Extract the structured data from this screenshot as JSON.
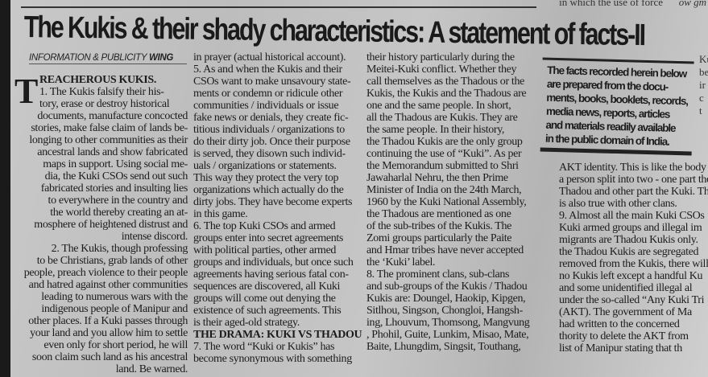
{
  "headline": "The Kukis & their shady characteristics: A statement of facts-II",
  "top_fragment": "in which the use of force",
  "top_fragment_right": "ow gm",
  "byline": {
    "prefix": "INFORMATION & PUBLICITY",
    "bold": "WING"
  },
  "dropcap": "T",
  "column1": [
    "REACHEROUS KUKIS.",
    "1. The Kukis falsify their his-",
    "tory, erase or destroy historical",
    "documents, manufacture concocted",
    "stories, make false claim of lands be-",
    "longing to other communities as their",
    "ancestral lands and show fabricated",
    "maps in support.  Using social me-",
    "dia, the Kuki CSOs send out such",
    "fabricated stories and insulting lies",
    "to everywhere in the country and",
    "the world thereby creating an at-",
    "mosphere of heightened distrust and",
    "intense discord.",
    "2. The Kukis, though professing",
    "to be Christians, grab lands of other",
    "people, preach violence to their people",
    "and hatred against other communities",
    "leading to numerous wars with the",
    "indigenous people of Manipur and",
    "other places. If a Kuki passes through",
    "your land and you allow him to settle",
    "even only for short period, he will",
    "soon claim such land as his ancestral",
    "land. Be warned."
  ],
  "column2": [
    "in prayer (actual historical account).",
    "5. As and when the Kukis and their",
    "CSOs want to make unsavoury state-",
    "ments or condemn or ridicule other",
    "communities / individuals or issue",
    "fake news or denials, they create fic-",
    "titious individuals / organizations to",
    "do their dirty job. Once their purpose",
    "is served, they disown such individ-",
    "uals / organizations or statements.",
    "This way they protect the very top",
    "organizations which actually do the",
    "dirty jobs.  They have become experts",
    "in this game.",
    "6. The top Kuki CSOs and armed",
    "groups enter into secret agreements",
    "with political parties, other armed",
    "groups and individuals, but once such",
    "agreements having serious fatal con-",
    "sequences are discovered, all Kuki",
    "groups will come out denying the",
    "existence of such agreements. This",
    "is their aged-old strategy.",
    "THE DRAMA: KUKI VS THADOU",
    "7. The word “Kuki or Kukis” has",
    "become synonymous with something"
  ],
  "column3": [
    "their history particularly during the",
    "Meitei-Kuki conflict. Whether they",
    "call themselves as the Thadous or the",
    "Kukis, the Kukis and the Thadous are",
    "one and the same people. In short,",
    "all the Thadous are Kukis. They are",
    "the same people. In their history,",
    "the Thadou Kukis are the only group",
    "continuing the use of “Kuki”. As per",
    "the Memorandum submitted to Shri",
    "Jawaharlal Nehru, the then Prime",
    "Minister of India on the 24th March,",
    "1960 by the Kuki National Assembly,",
    "the Thadous are mentioned as one",
    "of the sub-tribes of the Kukis.  The",
    "Zomi groups particularly the Paite",
    "and Hmar tribes have never accepted",
    "the ‘Kuki’ label.",
    "8. The prominent clans, sub-clans",
    "and sub-groups of the Kukis / Thadou",
    "Kukis are: Doungel, Haokip, Kipgen,",
    "Sitlhou, Singson, Chongloi, Hangsh-",
    "ing, Lhouvum, Thomsong, Mangvung",
    ", Phohil, Guite, Lunkim, Misao, Mate,",
    "Baite, Lhungdim, Singsit, Touthang,"
  ],
  "box": [
    "The facts recorded herein below",
    "are prepared from the docu-",
    "ments, books, booklets, records,",
    "media news, reports, articles",
    "and materials readily available",
    "in the public domain of India."
  ],
  "column4": [
    "AKT identity. This is like the body of",
    "a person split into two - one part the",
    "Thadou and other part the Kuki. This",
    "is also true with other clans.",
    "   9.  Almost all the main Kuki CSOs",
    "Kuki armed groups and illegal im",
    "migrants are Thadou Kukis only.",
    "the Thadou Kukis are segregated",
    "removed from the Kukis, there will",
    "no Kukis left except a handful Ku",
    "and some unidentified illegal al",
    "under the so-called “Any Kuki Tri",
    "(AKT). The government of Ma",
    "had written to the concerned",
    "thority to delete the AKT from",
    "list of Manipur stating that th"
  ],
  "right_edge": [
    "Ku",
    "be",
    "ir",
    "c",
    "t"
  ]
}
